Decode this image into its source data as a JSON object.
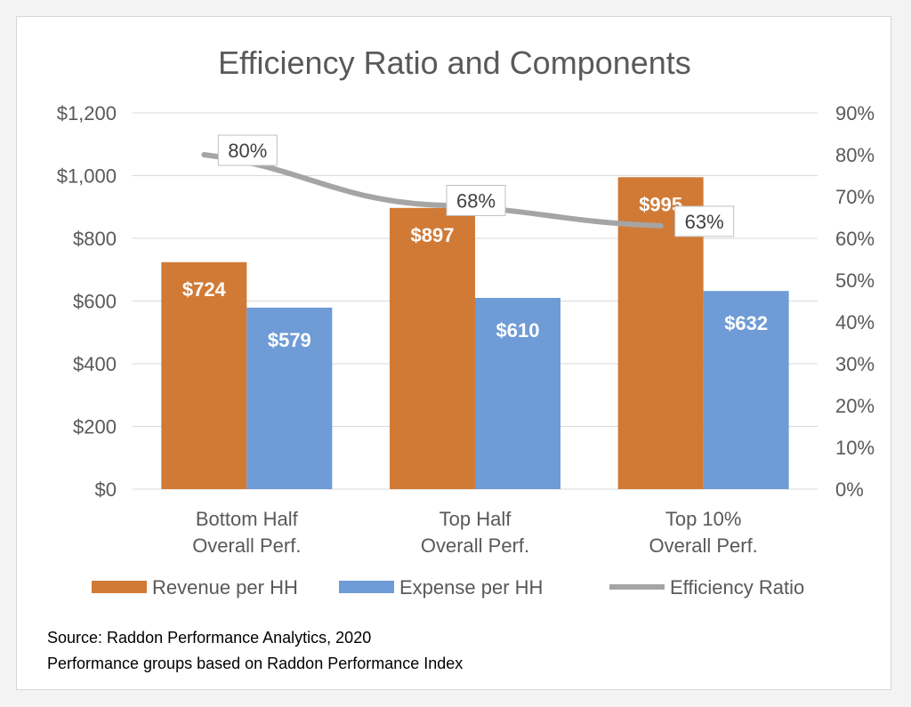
{
  "chart_data": {
    "type": "bar",
    "title": "Efficiency Ratio and Components",
    "categories": [
      [
        "Bottom Half",
        "Overall Perf."
      ],
      [
        "Top Half",
        "Overall Perf."
      ],
      [
        "Top 10%",
        "Overall Perf."
      ]
    ],
    "series": [
      {
        "name": "Revenue per HH",
        "kind": "bar",
        "axis": "left",
        "color": "#d07a36",
        "values": [
          724,
          897,
          995
        ],
        "labels": [
          "$724",
          "$897",
          "$995"
        ]
      },
      {
        "name": "Expense per HH",
        "kind": "bar",
        "axis": "left",
        "color": "#6f9bd6",
        "values": [
          579,
          610,
          632
        ],
        "labels": [
          "$579",
          "$610",
          "$632"
        ]
      },
      {
        "name": "Efficiency Ratio",
        "kind": "line",
        "axis": "right",
        "color": "#a5a5a5",
        "values": [
          80,
          68,
          63
        ],
        "labels": [
          "80%",
          "68%",
          "63%"
        ]
      }
    ],
    "y_left": {
      "min": 0,
      "max": 1200,
      "step": 200,
      "ticks": [
        "$0",
        "$200",
        "$400",
        "$600",
        "$800",
        "$1,000",
        "$1,200"
      ]
    },
    "y_right": {
      "min": 0,
      "max": 90,
      "step": 10,
      "ticks": [
        "0%",
        "10%",
        "20%",
        "30%",
        "40%",
        "50%",
        "60%",
        "70%",
        "80%",
        "90%"
      ]
    },
    "grid": true,
    "legend": "bottom"
  },
  "footnote": {
    "line1": "Source: Raddon Performance Analytics, 2020",
    "line2": "Performance groups based on Raddon Performance Index"
  },
  "colors": {
    "grid": "#d9d9d9",
    "axis_text": "#595959",
    "label_box": "#bfbfbf"
  }
}
